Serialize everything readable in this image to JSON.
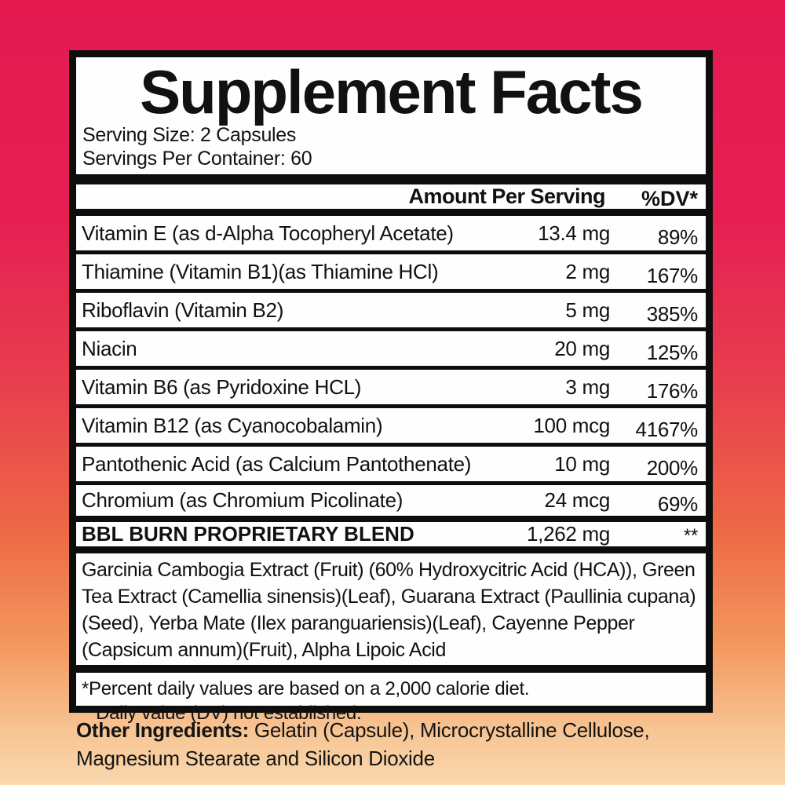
{
  "label": {
    "title": "Supplement Facts",
    "serving_size": "Serving Size: 2 Capsules",
    "servings_per_container": "Servings Per Container: 60",
    "header": {
      "amount": "Amount Per Serving",
      "dv": "%DV*"
    },
    "rows": [
      {
        "name": "Vitamin E (as d-Alpha Tocopheryl Acetate)",
        "amount": "13.4 mg",
        "dv": "89%"
      },
      {
        "name": "Thiamine (Vitamin B1)(as Thiamine HCl)",
        "amount": "2 mg",
        "dv": "167%"
      },
      {
        "name": "Riboflavin (Vitamin B2)",
        "amount": "5 mg",
        "dv": "385%"
      },
      {
        "name": "Niacin",
        "amount": "20 mg",
        "dv": "125%"
      },
      {
        "name": "Vitamin B6 (as Pyridoxine HCL)",
        "amount": "3 mg",
        "dv": "176%"
      },
      {
        "name": "Vitamin B12 (as Cyanocobalamin)",
        "amount": "100 mcg",
        "dv": "4167%"
      },
      {
        "name": "Pantothenic Acid (as Calcium Pantothenate)",
        "amount": "10 mg",
        "dv": "200%"
      },
      {
        "name": "Chromium (as Chromium Picolinate)",
        "amount": "24 mcg",
        "dv": "69%"
      }
    ],
    "blend": {
      "name": "BBL BURN PROPRIETARY BLEND",
      "amount": "1,262 mg",
      "dv": "**"
    },
    "blend_ingredients": "Garcinia Cambogia Extract (Fruit) (60% Hydroxycitric Acid (HCA)), Green Tea Extract (Camellia sinensis)(Leaf), Guarana Extract (Paullinia cupana)(Seed), Yerba Mate (Ilex paranguariensis)(Leaf), Cayenne Pepper (Capsicum annum)(Fruit), Alpha Lipoic Acid",
    "footnotes": [
      "*Percent daily values are based on a 2,000 calorie diet.",
      "**Daily value (DV) not established."
    ],
    "other_ingredients_label": "Other Ingredients:",
    "other_ingredients_text": " Gelatin (Capsule), Microcrystalline Cellulose, Magnesium Stearate and Silicon Dioxide"
  },
  "colors": {
    "background_top": "#e41a51",
    "background_middle": "#ee6a45",
    "background_bottom": "#f9d9ae",
    "panel_background": "#fefefe",
    "panel_border": "#0d0d0d",
    "text": "#111111"
  }
}
